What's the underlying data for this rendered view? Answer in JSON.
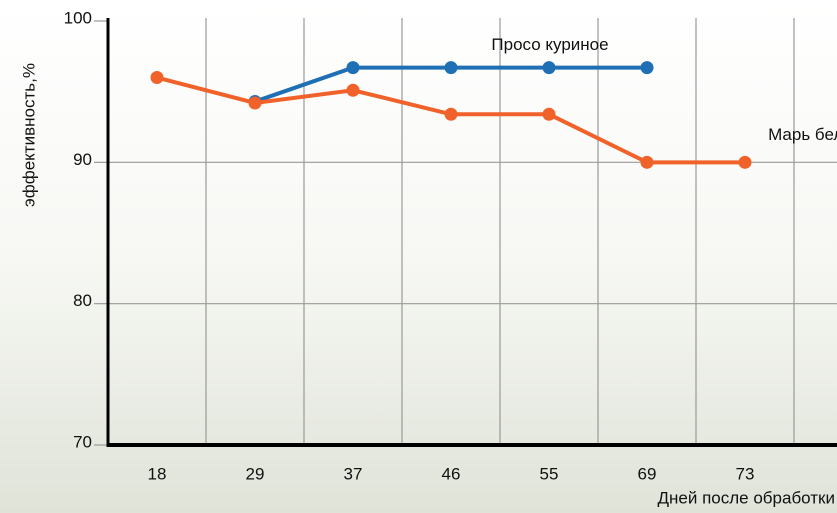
{
  "chart_data": {
    "type": "line",
    "categories": [
      "18",
      "29",
      "37",
      "46",
      "55",
      "69",
      "73"
    ],
    "series": [
      {
        "name": "Просо куриное",
        "color": "#1f6fb5",
        "values": [
          null,
          94.3,
          96.7,
          96.7,
          96.7,
          96.7,
          null
        ]
      },
      {
        "name": "Марь белая",
        "color": "#f0622a",
        "values": [
          96,
          94.2,
          95.1,
          93.4,
          93.4,
          90,
          90
        ]
      }
    ],
    "xlabel": "Дней после обработки",
    "ylabel": "эффективность,%",
    "ylim": [
      70,
      100
    ],
    "yticks": [
      70,
      80,
      90,
      100
    ],
    "grid": true
  }
}
